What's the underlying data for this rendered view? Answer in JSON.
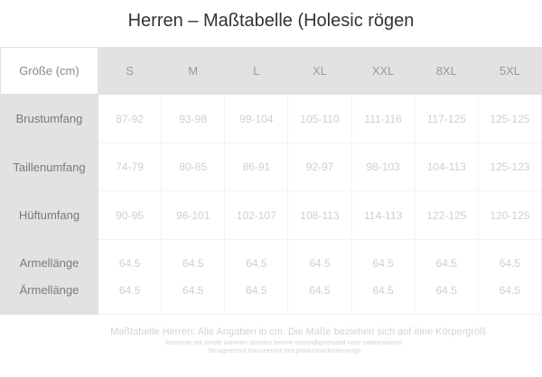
{
  "title": "Herren – Maßtabelle (Holesic rögen",
  "table": {
    "corner_label": "Größe (cm)",
    "sizes": [
      "S",
      "M",
      "L",
      "XL",
      "XXL",
      "8XL",
      "5XL"
    ],
    "rows": [
      {
        "label": "Brustumfang",
        "values": [
          "87-92",
          "93-98",
          "99-104",
          "105-110",
          "111-116",
          "117-125",
          "125-125"
        ]
      },
      {
        "label": "Taillenumfang",
        "values": [
          "74-79",
          "80-85",
          "86-91",
          "92-97",
          "98-103",
          "104-113",
          "125-123"
        ]
      },
      {
        "label": "Hüftumfang",
        "values": [
          "90-95",
          "96-101",
          "102-107",
          "108-113",
          "114-113",
          "122-125",
          "120-125"
        ]
      }
    ],
    "sleeve": {
      "labels": [
        "Armellänge",
        "Ärmellänge"
      ],
      "values_a": [
        "64.5",
        "64.5",
        "64.5",
        "64.5",
        "64.5",
        "64.5",
        "64.5"
      ],
      "values_b": [
        "64.5",
        "64.5",
        "64.5",
        "64.5",
        "64.5",
        "64.5",
        "64.5"
      ]
    }
  },
  "footer": {
    "line1": "Maßtabelle Herren:  Alle Angaben in cm. Die Maße beziehen sich auf eine Körpergröß",
    "line2": "Masenne not simple anmelen daselen beerne ooeundbjeseuadd nose sataneaaionsl.",
    "line3": "Ilenagnentsof mancoenmit hes productoaclosthenrogo"
  }
}
